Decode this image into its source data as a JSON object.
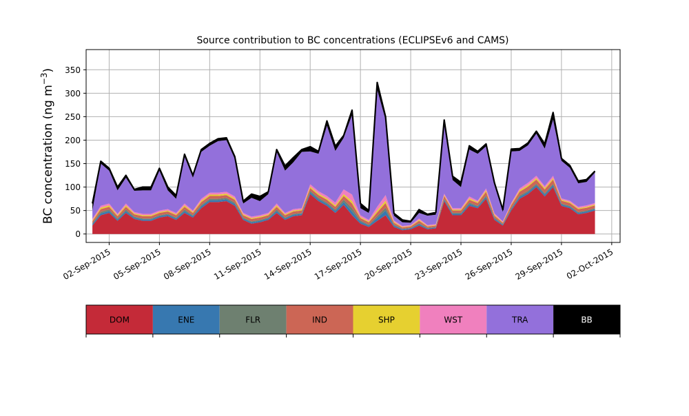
{
  "chart_data": {
    "type": "area",
    "stacked": true,
    "title": "Source contribution to BC concentrations (ECLIPSEv6 and CAMS)",
    "ylabel_prefix": "BC concentration (ng m",
    "ylabel_sup": "−3",
    "ylabel_suffix": ")",
    "xlabel": "",
    "ylim": [
      -18,
      393
    ],
    "xlim": [
      "2015-08-31T15:00",
      "2015-10-02T12:00"
    ],
    "y_ticks": [
      0,
      50,
      100,
      150,
      200,
      250,
      300,
      350
    ],
    "x_ticks": [
      "02-Sep-2015",
      "05-Sep-2015",
      "08-Sep-2015",
      "11-Sep-2015",
      "14-Sep-2015",
      "17-Sep-2015",
      "20-Sep-2015",
      "23-Sep-2015",
      "26-Sep-2015",
      "29-Sep-2015",
      "02-Oct-2015"
    ],
    "grid": true,
    "legend_placement": "below",
    "x": [
      "2015-09-01",
      "2015-09-01T12:00",
      "2015-09-02",
      "2015-09-02T12:00",
      "2015-09-03",
      "2015-09-03T12:00",
      "2015-09-04",
      "2015-09-04T12:00",
      "2015-09-05",
      "2015-09-05T12:00",
      "2015-09-06",
      "2015-09-06T12:00",
      "2015-09-07",
      "2015-09-07T12:00",
      "2015-09-08",
      "2015-09-08T12:00",
      "2015-09-09",
      "2015-09-09T12:00",
      "2015-09-10",
      "2015-09-10T12:00",
      "2015-09-11",
      "2015-09-11T12:00",
      "2015-09-12",
      "2015-09-12T12:00",
      "2015-09-13",
      "2015-09-13T12:00",
      "2015-09-14",
      "2015-09-14T12:00",
      "2015-09-15",
      "2015-09-15T12:00",
      "2015-09-16",
      "2015-09-16T12:00",
      "2015-09-17",
      "2015-09-17T12:00",
      "2015-09-18",
      "2015-09-18T12:00",
      "2015-09-19",
      "2015-09-19T12:00",
      "2015-09-20",
      "2015-09-20T12:00",
      "2015-09-21",
      "2015-09-21T12:00",
      "2015-09-22",
      "2015-09-22T12:00",
      "2015-09-23",
      "2015-09-23T12:00",
      "2015-09-24",
      "2015-09-24T12:00",
      "2015-09-25",
      "2015-09-25T12:00",
      "2015-09-26",
      "2015-09-26T12:00",
      "2015-09-27",
      "2015-09-27T12:00",
      "2015-09-28",
      "2015-09-28T12:00",
      "2015-09-29",
      "2015-09-29T12:00",
      "2015-09-30",
      "2015-09-30T12:00",
      "2015-10-01"
    ],
    "series": [
      {
        "name": "DOM",
        "color": "#c42a38",
        "values": [
          18,
          40,
          45,
          28,
          45,
          32,
          28,
          28,
          35,
          38,
          30,
          45,
          35,
          55,
          68,
          68,
          70,
          60,
          30,
          22,
          25,
          30,
          45,
          30,
          38,
          40,
          85,
          70,
          60,
          45,
          62,
          40,
          22,
          15,
          28,
          40,
          15,
          8,
          10,
          18,
          10,
          12,
          70,
          40,
          40,
          60,
          55,
          75,
          30,
          18,
          50,
          75,
          85,
          100,
          80,
          100,
          60,
          55,
          42,
          45,
          50
        ]
      },
      {
        "name": "ENE",
        "color": "#3778b0",
        "values": [
          3,
          4,
          4,
          3,
          4,
          3,
          3,
          3,
          3,
          3,
          3,
          4,
          3,
          4,
          4,
          4,
          4,
          4,
          3,
          3,
          3,
          3,
          4,
          3,
          3,
          3,
          4,
          4,
          4,
          4,
          6,
          8,
          4,
          3,
          6,
          10,
          3,
          2,
          2,
          3,
          2,
          2,
          3,
          3,
          3,
          4,
          3,
          4,
          3,
          2,
          3,
          4,
          4,
          4,
          4,
          4,
          3,
          3,
          3,
          3,
          3
        ]
      },
      {
        "name": "FLR",
        "color": "#6e8070",
        "values": [
          2,
          3,
          3,
          2,
          3,
          2,
          2,
          2,
          2,
          2,
          2,
          3,
          2,
          3,
          3,
          3,
          3,
          3,
          2,
          2,
          2,
          2,
          3,
          2,
          2,
          2,
          3,
          3,
          3,
          3,
          5,
          7,
          3,
          2,
          4,
          6,
          2,
          1,
          1,
          2,
          1,
          1,
          2,
          2,
          2,
          3,
          2,
          3,
          2,
          1,
          2,
          3,
          3,
          3,
          3,
          3,
          2,
          2,
          2,
          2,
          2
        ]
      },
      {
        "name": "IND",
        "color": "#cc6655",
        "values": [
          4,
          6,
          6,
          5,
          6,
          5,
          5,
          5,
          5,
          5,
          5,
          6,
          5,
          6,
          6,
          6,
          6,
          6,
          5,
          5,
          5,
          5,
          6,
          5,
          5,
          5,
          6,
          6,
          6,
          6,
          8,
          10,
          5,
          5,
          8,
          10,
          4,
          3,
          3,
          5,
          3,
          3,
          6,
          5,
          5,
          6,
          6,
          8,
          4,
          3,
          6,
          8,
          9,
          9,
          8,
          9,
          6,
          6,
          6,
          6,
          6
        ]
      },
      {
        "name": "SHP",
        "color": "#e6d030",
        "values": [
          2,
          3,
          3,
          2,
          3,
          2,
          2,
          2,
          2,
          2,
          2,
          3,
          2,
          3,
          3,
          3,
          3,
          3,
          2,
          2,
          2,
          2,
          3,
          2,
          2,
          2,
          3,
          3,
          3,
          3,
          4,
          5,
          2,
          2,
          4,
          5,
          2,
          1,
          1,
          2,
          1,
          1,
          2,
          2,
          2,
          3,
          2,
          3,
          2,
          1,
          2,
          3,
          3,
          3,
          3,
          3,
          2,
          2,
          2,
          2,
          2
        ]
      },
      {
        "name": "WST",
        "color": "#f080be",
        "values": [
          3,
          4,
          4,
          3,
          4,
          3,
          3,
          3,
          3,
          3,
          3,
          4,
          3,
          4,
          4,
          4,
          4,
          4,
          3,
          3,
          3,
          3,
          4,
          3,
          3,
          3,
          5,
          5,
          5,
          6,
          10,
          14,
          4,
          3,
          8,
          12,
          3,
          2,
          2,
          3,
          2,
          2,
          3,
          3,
          3,
          4,
          3,
          4,
          3,
          2,
          3,
          4,
          5,
          5,
          4,
          5,
          3,
          3,
          3,
          3,
          3
        ]
      },
      {
        "name": "TRA",
        "color": "#9370db",
        "values": [
          18,
          90,
          70,
          50,
          55,
          45,
          50,
          50,
          85,
          40,
          30,
          100,
          70,
          100,
          100,
          110,
          110,
          80,
          20,
          40,
          30,
          40,
          110,
          90,
          100,
          120,
          70,
          80,
          150,
          110,
          110,
          170,
          15,
          15,
          250,
          160,
          10,
          8,
          5,
          12,
          20,
          20,
          150,
          60,
          45,
          100,
          100,
          90,
          60,
          20,
          110,
          80,
          80,
          90,
          80,
          120,
          80,
          70,
          50,
          50,
          65
        ]
      },
      {
        "name": "BB",
        "color": "#000000",
        "values": [
          15,
          5,
          5,
          7,
          5,
          3,
          7,
          7,
          5,
          7,
          7,
          5,
          5,
          5,
          5,
          5,
          5,
          5,
          5,
          8,
          10,
          5,
          5,
          10,
          10,
          5,
          10,
          5,
          10,
          10,
          5,
          10,
          10,
          5,
          15,
          7,
          5,
          5,
          3,
          7,
          3,
          5,
          7,
          8,
          10,
          8,
          5,
          5,
          5,
          5,
          5,
          5,
          5,
          5,
          10,
          15,
          5,
          5,
          5,
          5,
          3
        ]
      }
    ]
  }
}
